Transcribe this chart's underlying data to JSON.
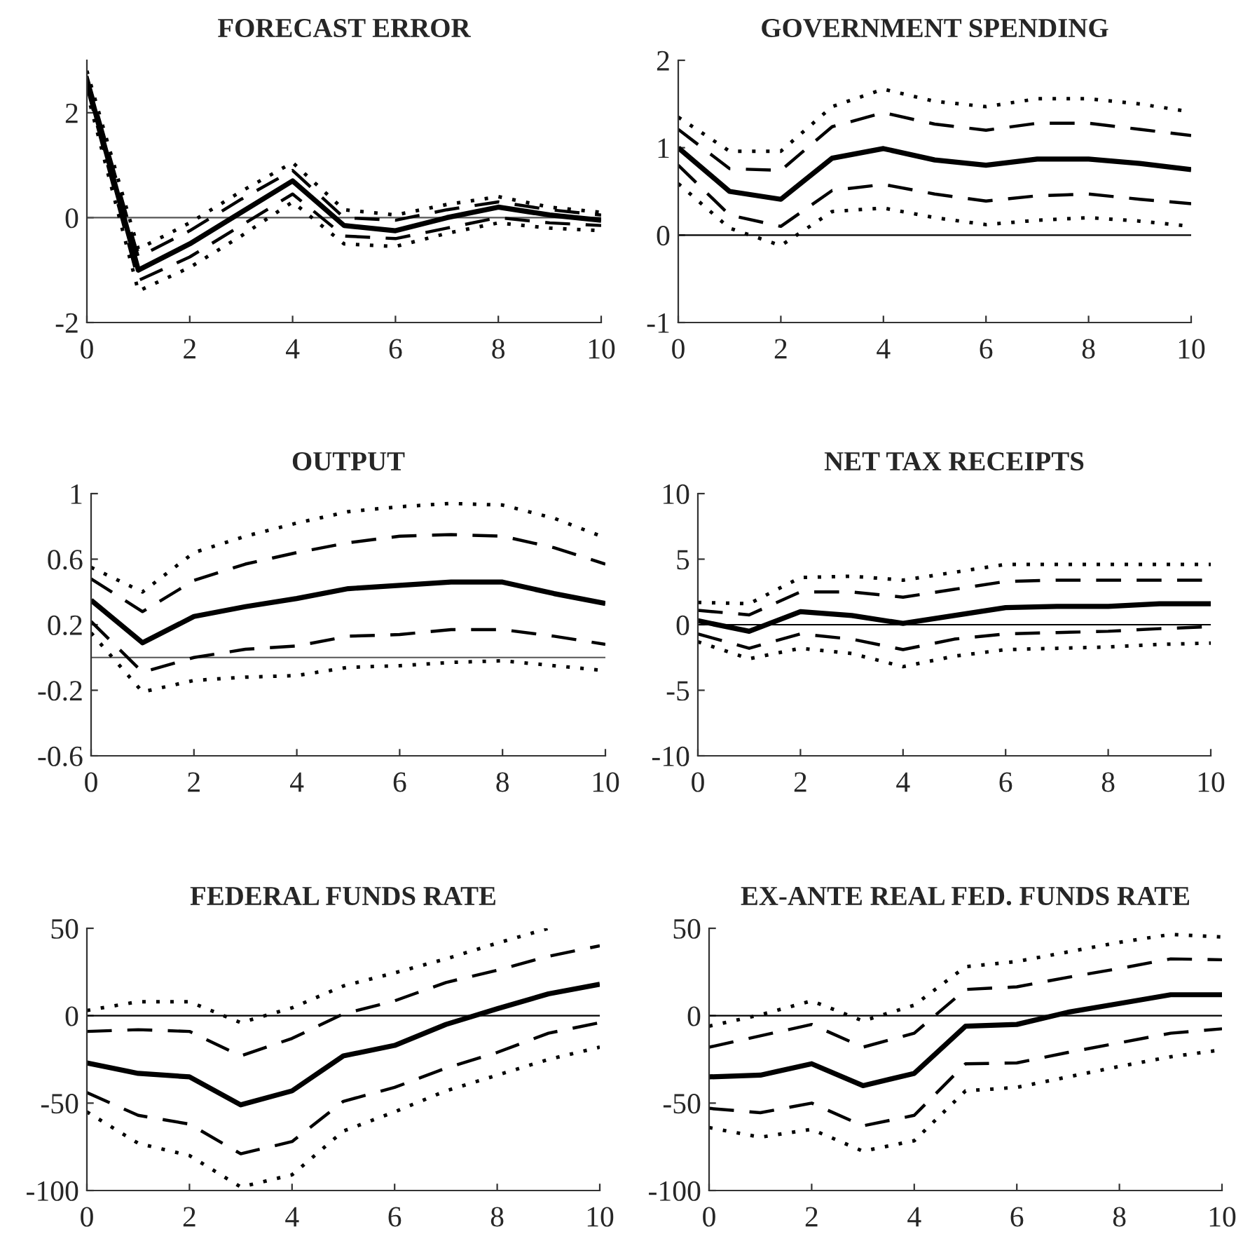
{
  "chart_data": [
    {
      "type": "line",
      "title": "FORECAST ERROR",
      "x": [
        0,
        1,
        2,
        3,
        4,
        5,
        6,
        7,
        8,
        9,
        10
      ],
      "xlim": [
        0,
        10
      ],
      "xticks": [
        0,
        2,
        4,
        6,
        8,
        10
      ],
      "ylim": [
        -2,
        3
      ],
      "yticks": [
        -2,
        0,
        2
      ],
      "grid": false,
      "legend": false,
      "ref_lines": [
        {
          "axis": "y",
          "value": 0,
          "color": "#555555"
        }
      ],
      "series": [
        {
          "color": "#000000",
          "line_style": "dotted",
          "values": [
            2.8,
            -0.6,
            -0.1,
            0.5,
            1.05,
            0.15,
            0.05,
            0.25,
            0.4,
            0.2,
            0.1
          ]
        },
        {
          "color": "#000000",
          "line_style": "dashed",
          "values": [
            2.7,
            -0.75,
            -0.25,
            0.35,
            0.9,
            0.0,
            -0.05,
            0.15,
            0.3,
            0.15,
            0.05
          ]
        },
        {
          "color": "#000000",
          "line_style": "solid",
          "values": [
            2.6,
            -1.0,
            -0.5,
            0.1,
            0.7,
            -0.15,
            -0.25,
            0.0,
            0.2,
            0.05,
            -0.05
          ]
        },
        {
          "color": "#000000",
          "line_style": "dashed",
          "values": [
            2.5,
            -1.2,
            -0.75,
            -0.15,
            0.45,
            -0.35,
            -0.4,
            -0.2,
            0.0,
            -0.1,
            -0.15
          ]
        },
        {
          "color": "#000000",
          "line_style": "dotted",
          "values": [
            2.4,
            -1.4,
            -0.95,
            -0.35,
            0.3,
            -0.5,
            -0.55,
            -0.3,
            -0.1,
            -0.2,
            -0.25
          ]
        }
      ]
    },
    {
      "type": "line",
      "title": "GOVERNMENT SPENDING",
      "x": [
        0,
        1,
        2,
        3,
        4,
        5,
        6,
        7,
        8,
        9,
        10
      ],
      "xlim": [
        0,
        10
      ],
      "xticks": [
        0,
        2,
        4,
        6,
        8,
        10
      ],
      "ylim": [
        -1,
        2
      ],
      "yticks": [
        -1,
        0,
        1,
        2
      ],
      "grid": false,
      "legend": false,
      "ref_lines": [
        {
          "axis": "y",
          "value": 0,
          "color": "#000000"
        }
      ],
      "series": [
        {
          "color": "#000000",
          "line_style": "dotted",
          "values": [
            1.35,
            0.96,
            0.96,
            1.47,
            1.67,
            1.53,
            1.47,
            1.56,
            1.56,
            1.5,
            1.41
          ]
        },
        {
          "color": "#000000",
          "line_style": "dashed",
          "values": [
            1.21,
            0.76,
            0.74,
            1.24,
            1.4,
            1.27,
            1.2,
            1.28,
            1.28,
            1.21,
            1.14
          ]
        },
        {
          "color": "#000000",
          "line_style": "solid",
          "values": [
            1.0,
            0.5,
            0.41,
            0.88,
            0.99,
            0.86,
            0.8,
            0.87,
            0.87,
            0.82,
            0.75
          ]
        },
        {
          "color": "#000000",
          "line_style": "dashed",
          "values": [
            0.8,
            0.23,
            0.1,
            0.51,
            0.58,
            0.47,
            0.39,
            0.45,
            0.47,
            0.41,
            0.36
          ]
        },
        {
          "color": "#000000",
          "line_style": "dotted",
          "values": [
            0.59,
            0.08,
            -0.12,
            0.27,
            0.31,
            0.2,
            0.12,
            0.17,
            0.2,
            0.16,
            0.1
          ]
        }
      ]
    },
    {
      "type": "line",
      "title": "OUTPUT",
      "x": [
        0,
        1,
        2,
        3,
        4,
        5,
        6,
        7,
        8,
        9,
        10
      ],
      "xlim": [
        0,
        10
      ],
      "xticks": [
        0,
        2,
        4,
        6,
        8,
        10
      ],
      "ylim": [
        -0.6,
        1
      ],
      "yticks": [
        -0.6,
        -0.2,
        0.2,
        0.6,
        1
      ],
      "grid": false,
      "legend": false,
      "ref_lines": [
        {
          "axis": "y",
          "value": 0,
          "color": "#555555"
        }
      ],
      "series": [
        {
          "color": "#000000",
          "line_style": "dotted",
          "values": [
            0.55,
            0.4,
            0.64,
            0.74,
            0.82,
            0.89,
            0.92,
            0.94,
            0.93,
            0.85,
            0.73
          ]
        },
        {
          "color": "#000000",
          "line_style": "dashed",
          "values": [
            0.48,
            0.28,
            0.47,
            0.57,
            0.64,
            0.7,
            0.74,
            0.75,
            0.74,
            0.67,
            0.57
          ]
        },
        {
          "color": "#000000",
          "line_style": "solid",
          "values": [
            0.35,
            0.09,
            0.25,
            0.31,
            0.36,
            0.42,
            0.44,
            0.46,
            0.46,
            0.39,
            0.33
          ]
        },
        {
          "color": "#000000",
          "line_style": "dashed",
          "values": [
            0.22,
            -0.09,
            0.0,
            0.05,
            0.07,
            0.13,
            0.14,
            0.17,
            0.17,
            0.13,
            0.08
          ]
        },
        {
          "color": "#000000",
          "line_style": "dotted",
          "values": [
            0.15,
            -0.21,
            -0.14,
            -0.12,
            -0.11,
            -0.06,
            -0.05,
            -0.03,
            -0.02,
            -0.05,
            -0.08
          ]
        }
      ]
    },
    {
      "type": "line",
      "title": "NET TAX RECEIPTS",
      "x": [
        0,
        1,
        2,
        3,
        4,
        5,
        6,
        7,
        8,
        9,
        10
      ],
      "xlim": [
        0,
        10
      ],
      "xticks": [
        0,
        2,
        4,
        6,
        8,
        10
      ],
      "ylim": [
        -10,
        10
      ],
      "yticks": [
        -10,
        -5,
        0,
        5,
        10
      ],
      "grid": false,
      "legend": false,
      "ref_lines": [
        {
          "axis": "y",
          "value": 0,
          "color": "#000000"
        }
      ],
      "series": [
        {
          "color": "#000000",
          "line_style": "dotted",
          "values": [
            1.7,
            1.6,
            3.6,
            3.7,
            3.4,
            4.0,
            4.6,
            4.6,
            4.6,
            4.6,
            4.6
          ]
        },
        {
          "color": "#000000",
          "line_style": "dashed",
          "values": [
            1.1,
            0.75,
            2.5,
            2.5,
            2.1,
            2.7,
            3.3,
            3.4,
            3.4,
            3.4,
            3.4
          ]
        },
        {
          "color": "#000000",
          "line_style": "solid",
          "values": [
            0.3,
            -0.5,
            1.0,
            0.7,
            0.1,
            0.7,
            1.3,
            1.4,
            1.4,
            1.6,
            1.6
          ]
        },
        {
          "color": "#000000",
          "line_style": "dashed",
          "values": [
            -0.7,
            -1.8,
            -0.7,
            -1.1,
            -1.9,
            -1.1,
            -0.7,
            -0.6,
            -0.5,
            -0.3,
            -0.15
          ]
        },
        {
          "color": "#000000",
          "line_style": "dotted",
          "values": [
            -1.3,
            -2.6,
            -1.8,
            -2.2,
            -3.2,
            -2.4,
            -1.9,
            -1.8,
            -1.7,
            -1.5,
            -1.4
          ]
        }
      ]
    },
    {
      "type": "line",
      "title": "FEDERAL FUNDS RATE",
      "x": [
        0,
        1,
        2,
        3,
        4,
        5,
        6,
        7,
        8,
        9,
        10
      ],
      "xlim": [
        0,
        10
      ],
      "xticks": [
        0,
        2,
        4,
        6,
        8,
        10
      ],
      "ylim": [
        -100,
        50
      ],
      "yticks": [
        -100,
        -50,
        0,
        50
      ],
      "grid": false,
      "legend": false,
      "ref_lines": [
        {
          "axis": "y",
          "value": 0,
          "color": "#000000"
        }
      ],
      "series": [
        {
          "color": "#000000",
          "line_style": "dotted",
          "values": [
            3,
            8,
            8,
            -4,
            4.5,
            17,
            24.5,
            32.5,
            41.5,
            50,
            null
          ]
        },
        {
          "color": "#000000",
          "line_style": "dashed",
          "values": [
            -9,
            -8,
            -9,
            -23,
            -13,
            1,
            8.5,
            19,
            26,
            34,
            40
          ]
        },
        {
          "color": "#000000",
          "line_style": "solid",
          "values": [
            -27,
            -33,
            -35,
            -51,
            -43,
            -23,
            -17,
            -5,
            4,
            12.5,
            18
          ]
        },
        {
          "color": "#000000",
          "line_style": "dashed",
          "values": [
            -44,
            -57,
            -62,
            -79,
            -72,
            -49,
            -41,
            -30,
            -21,
            -10,
            -4
          ]
        },
        {
          "color": "#000000",
          "line_style": "dotted",
          "values": [
            -55,
            -73,
            -80,
            -98,
            -91,
            -66,
            -55,
            -43,
            -34,
            -25,
            -18
          ]
        }
      ]
    },
    {
      "type": "line",
      "title": "EX-ANTE REAL FED. FUNDS RATE",
      "x": [
        0,
        1,
        2,
        3,
        4,
        5,
        6,
        7,
        8,
        9,
        10
      ],
      "xlim": [
        0,
        10
      ],
      "xticks": [
        0,
        2,
        4,
        6,
        8,
        10
      ],
      "ylim": [
        -100,
        50
      ],
      "yticks": [
        -100,
        -50,
        0,
        50
      ],
      "grid": false,
      "legend": false,
      "ref_lines": [
        {
          "axis": "y",
          "value": 0,
          "color": "#000000"
        }
      ],
      "series": [
        {
          "color": "#000000",
          "line_style": "dotted",
          "values": [
            -6,
            0.5,
            8.5,
            -3,
            6,
            28,
            31,
            36.5,
            42,
            46.5,
            45
          ]
        },
        {
          "color": "#000000",
          "line_style": "dashed",
          "values": [
            -18,
            -11.5,
            -5,
            -18,
            -10,
            15,
            16.5,
            22,
            27,
            32.5,
            32
          ]
        },
        {
          "color": "#000000",
          "line_style": "solid",
          "values": [
            -35,
            -34,
            -27.5,
            -40,
            -33,
            -6,
            -5,
            2,
            7,
            12,
            12
          ]
        },
        {
          "color": "#000000",
          "line_style": "dashed",
          "values": [
            -53,
            -55.5,
            -50,
            -63,
            -57,
            -27.5,
            -27,
            -21,
            -15.5,
            -10,
            -7.5
          ]
        },
        {
          "color": "#000000",
          "line_style": "dotted",
          "values": [
            -64,
            -69.5,
            -65,
            -77.5,
            -71.5,
            -43,
            -41,
            -35,
            -29,
            -23.5,
            -19.5
          ]
        }
      ]
    }
  ]
}
